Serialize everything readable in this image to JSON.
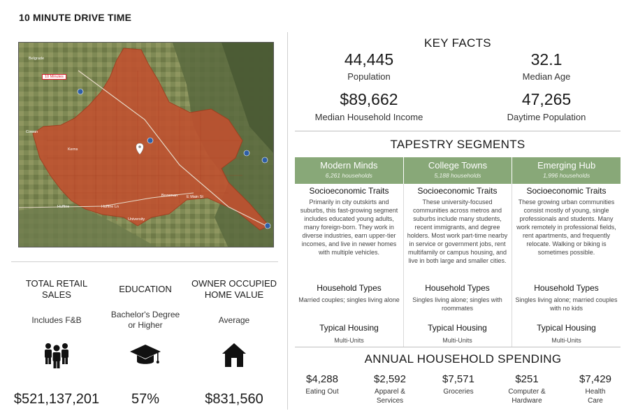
{
  "page_title": "10 MINUTE DRIVE TIME",
  "map": {
    "drive_tag": "10 Minutes",
    "places": [
      "Belgrade",
      "Cowan",
      "Kerns",
      "Huffine",
      "Huffine Ln",
      "Bozeman",
      "E Main St",
      "University"
    ]
  },
  "key_facts": {
    "heading": "KEY FACTS",
    "items": [
      {
        "value": "44,445",
        "label": "Population"
      },
      {
        "value": "32.1",
        "label": "Median Age"
      },
      {
        "value": "$89,662",
        "label": "Median Household Income"
      },
      {
        "value": "47,265",
        "label": "Daytime Population"
      }
    ]
  },
  "tapestry": {
    "heading": "TAPESTRY SEGMENTS",
    "traits_heading": "Socioeconomic Traits",
    "household_heading": "Household Types",
    "housing_heading": "Typical Housing",
    "segments": [
      {
        "name": "Modern Minds",
        "households": "6,261 households",
        "traits": "Primarily in city outskirts and suburbs, this fast-growing segment includes educated young adults, many foreign-born. They work in diverse industries, earn upper-tier incomes, and live in newer homes with multiple vehicles.",
        "household_types": "Married couples; singles living alone",
        "housing": "Multi-Units"
      },
      {
        "name": "College Towns",
        "households": "5,188 households",
        "traits": "These university-focused communities across metros and suburbs include many students, recent immigrants, and degree holders. Most work part-time nearby in service or government jobs, rent multifamily or campus housing, and live in both large and smaller cities.",
        "household_types": "Singles living alone; singles with roommates",
        "housing": "Multi-Units"
      },
      {
        "name": "Emerging Hub",
        "households": "1,996 households",
        "traits": "These growing urban communities consist mostly of young, single professionals and students. Many work remotely in professional fields, rent apartments, and frequently relocate. Walking or biking is sometimes possible.",
        "household_types": "Singles living alone; married couples with no kids",
        "housing": "Multi-Units"
      }
    ]
  },
  "spending": {
    "heading": "ANNUAL HOUSEHOLD SPENDING",
    "items": [
      {
        "value": "$4,288",
        "label": "Eating Out"
      },
      {
        "value": "$2,592",
        "label": "Apparel & Services"
      },
      {
        "value": "$7,571",
        "label": "Groceries"
      },
      {
        "value": "$251",
        "label": "Computer & Hardware"
      },
      {
        "value": "$7,429",
        "label": "Health Care"
      }
    ]
  },
  "bottom": {
    "items": [
      {
        "title": "TOTAL RETAIL SALES",
        "subtitle": "Includes F&B",
        "value": "$521,137,201",
        "icon": "people-group-icon"
      },
      {
        "title": "EDUCATION",
        "subtitle": "Bachelor's Degree or Higher",
        "value": "57%",
        "icon": "graduation-cap-icon"
      },
      {
        "title": "OWNER OCCUPIED HOME VALUE",
        "subtitle": "Average",
        "value": "$831,560",
        "icon": "house-icon"
      }
    ]
  },
  "colors": {
    "segment_bar": "#88a878",
    "drive_area": "#c2502f"
  }
}
